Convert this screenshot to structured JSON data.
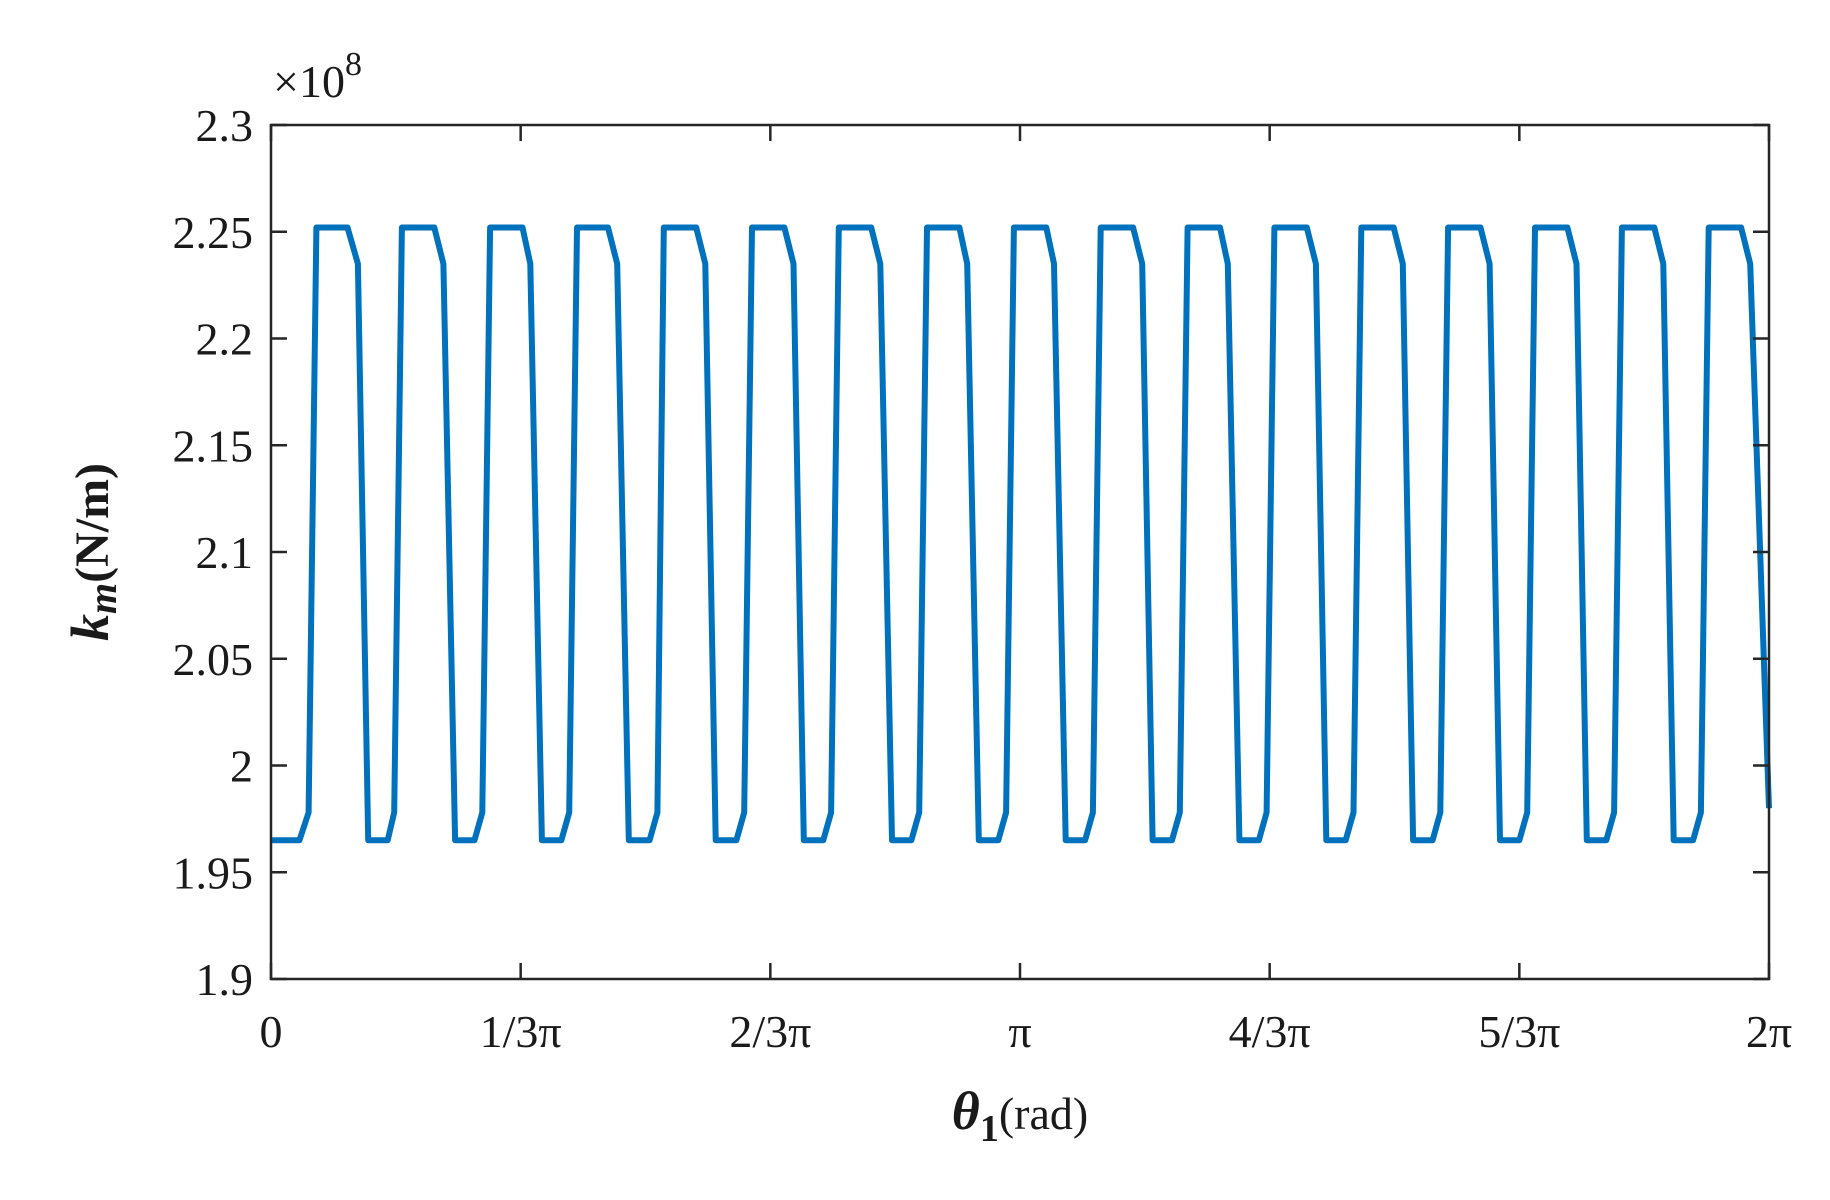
{
  "chart_data": {
    "type": "line",
    "title": "",
    "xlabel": {
      "symbol": "θ",
      "subscript": "1",
      "unit": "(rad)"
    },
    "ylabel": {
      "symbol": "k",
      "subscript": "m",
      "unit": "(N/m)"
    },
    "y_exponent": {
      "prefix": "×10",
      "power": "8"
    },
    "xlim": [
      0,
      6.283185
    ],
    "ylim": [
      1.9,
      2.3
    ],
    "x_ticks": [
      {
        "value": 0,
        "label": "0"
      },
      {
        "value": 1.047198,
        "label": "1/3π"
      },
      {
        "value": 2.094395,
        "label": "2/3π"
      },
      {
        "value": 3.141593,
        "label": "π"
      },
      {
        "value": 4.18879,
        "label": "4/3π"
      },
      {
        "value": 5.235988,
        "label": "5/3π"
      },
      {
        "value": 6.283185,
        "label": "2π"
      }
    ],
    "y_ticks": [
      {
        "value": 1.9,
        "label": "1.9"
      },
      {
        "value": 1.95,
        "label": "1.95"
      },
      {
        "value": 2.0,
        "label": "2"
      },
      {
        "value": 2.05,
        "label": "2.05"
      },
      {
        "value": 2.1,
        "label": "2.1"
      },
      {
        "value": 2.15,
        "label": "2.15"
      },
      {
        "value": 2.2,
        "label": "2.2"
      },
      {
        "value": 2.25,
        "label": "2.25"
      },
      {
        "value": 2.3,
        "label": "2.3"
      }
    ],
    "grid": false,
    "series": [
      {
        "color": "#0072BD",
        "x": [
          0,
          0.1196,
          0.1577,
          0.1904,
          0.3209,
          0.3645,
          0.4078,
          0.4894,
          0.5166,
          0.5492,
          0.6851,
          0.7231,
          0.7721,
          0.8537,
          0.8863,
          0.9189,
          1.0548,
          1.0875,
          1.1364,
          1.218,
          1.2506,
          1.2833,
          1.4137,
          1.4519,
          1.5008,
          1.5878,
          1.6205,
          1.6477,
          1.7836,
          1.8217,
          1.8652,
          1.9522,
          1.9848,
          2.0175,
          2.1533,
          2.1914,
          2.2349,
          2.3165,
          2.3491,
          2.3817,
          2.5176,
          2.5557,
          2.6046,
          2.6862,
          2.7188,
          2.7515,
          2.8874,
          2.92,
          2.9689,
          3.0505,
          3.0831,
          3.1158,
          3.2517,
          3.2843,
          3.3332,
          3.4148,
          3.4475,
          3.4801,
          3.616,
          3.6541,
          3.6976,
          3.7792,
          3.8118,
          3.8444,
          3.9803,
          4.013,
          4.0619,
          4.1435,
          4.1761,
          4.2087,
          4.3446,
          4.3827,
          4.4262,
          4.5078,
          4.5404,
          4.573,
          4.7089,
          4.747,
          4.7905,
          4.8721,
          4.9047,
          4.9374,
          5.0733,
          5.1113,
          5.1548,
          5.2364,
          5.269,
          5.3017,
          5.4376,
          5.4756,
          5.5191,
          5.6007,
          5.6333,
          5.666,
          5.8019,
          5.8399,
          5.8834,
          5.965,
          5.9977,
          6.0303,
          6.1662,
          6.2043,
          6.2832
        ],
        "y": [
          1.965,
          1.965,
          1.978,
          2.252,
          2.252,
          2.235,
          1.965,
          1.965,
          1.978,
          2.252,
          2.252,
          2.235,
          1.965,
          1.965,
          1.978,
          2.252,
          2.252,
          2.235,
          1.965,
          1.965,
          1.978,
          2.252,
          2.252,
          2.235,
          1.965,
          1.965,
          1.978,
          2.252,
          2.252,
          2.235,
          1.965,
          1.965,
          1.978,
          2.252,
          2.252,
          2.235,
          1.965,
          1.965,
          1.978,
          2.252,
          2.252,
          2.235,
          1.965,
          1.965,
          1.978,
          2.252,
          2.252,
          2.235,
          1.965,
          1.965,
          1.978,
          2.252,
          2.252,
          2.235,
          1.965,
          1.965,
          1.978,
          2.252,
          2.252,
          2.235,
          1.965,
          1.965,
          1.978,
          2.252,
          2.252,
          2.235,
          1.965,
          1.965,
          1.978,
          2.252,
          2.252,
          2.235,
          1.965,
          1.965,
          1.978,
          2.252,
          2.252,
          2.235,
          1.965,
          1.965,
          1.978,
          2.252,
          2.252,
          2.235,
          1.965,
          1.965,
          1.978,
          2.252,
          2.252,
          2.235,
          1.965,
          1.965,
          1.978,
          2.252,
          2.252,
          2.235,
          1.965,
          1.965,
          1.978,
          2.252,
          2.252,
          2.235,
          1.98
        ]
      }
    ]
  }
}
